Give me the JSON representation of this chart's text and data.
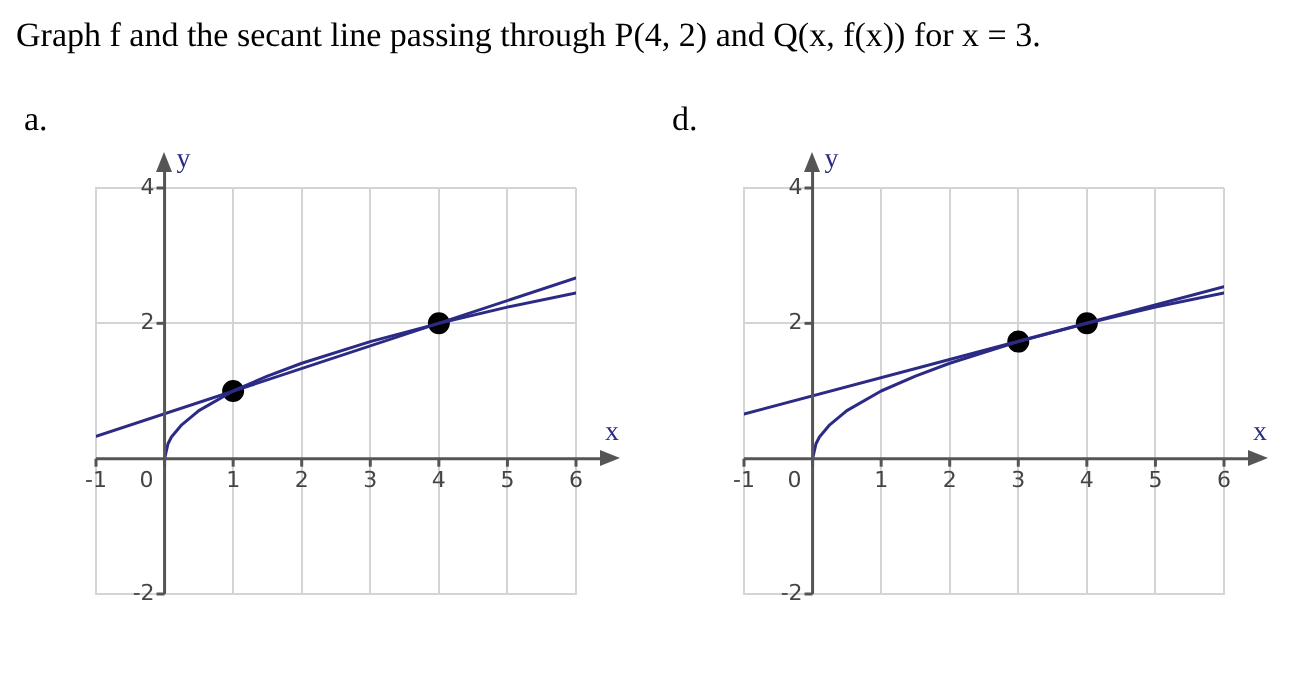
{
  "chart_data": [
    {
      "type": "line",
      "title": "a.",
      "annotations": [
        "Graph f and the secant line passing through P(4, 2) and Q(x, f(x)) for x = 3."
      ],
      "xlabel": "x",
      "ylabel": "y",
      "xlim": [
        -1,
        6
      ],
      "ylim": [
        -2,
        4
      ],
      "xticks": [
        -1,
        0,
        1,
        2,
        3,
        4,
        5,
        6
      ],
      "yticks": [
        -2,
        2,
        4
      ],
      "grid": true,
      "legend": false,
      "series": [
        {
          "type": "line",
          "color": "#2b2b85",
          "x": [
            0,
            0.05,
            0.1,
            0.25,
            0.5,
            1,
            1.5,
            2,
            3,
            4,
            5,
            6
          ],
          "values": [
            0,
            0.22,
            0.32,
            0.5,
            0.71,
            1,
            1.22,
            1.41,
            1.73,
            2,
            2.24,
            2.45
          ]
        },
        {
          "type": "line",
          "color": "#2b2b85",
          "x": [
            -1,
            6
          ],
          "values": [
            0.33,
            2.67
          ]
        },
        {
          "type": "scatter",
          "color": "#000000",
          "marker": "circle",
          "x": [
            1,
            4
          ],
          "values": [
            1,
            2
          ]
        }
      ]
    },
    {
      "type": "line",
      "title": "d.",
      "xlabel": "x",
      "ylabel": "y",
      "xlim": [
        -1,
        6
      ],
      "ylim": [
        -2,
        4
      ],
      "xticks": [
        -1,
        0,
        1,
        2,
        3,
        4,
        5,
        6
      ],
      "yticks": [
        -2,
        2,
        4
      ],
      "grid": true,
      "legend": false,
      "series": [
        {
          "type": "line",
          "color": "#2b2b85",
          "x": [
            0,
            0.05,
            0.1,
            0.25,
            0.5,
            1,
            1.5,
            2,
            3,
            4,
            5,
            6
          ],
          "values": [
            0,
            0.22,
            0.32,
            0.5,
            0.71,
            1,
            1.22,
            1.41,
            1.73,
            2,
            2.24,
            2.45
          ]
        },
        {
          "type": "line",
          "color": "#2b2b85",
          "x": [
            -1,
            6
          ],
          "values": [
            0.66,
            2.54
          ]
        },
        {
          "type": "scatter",
          "color": "#000000",
          "marker": "circle",
          "x": [
            3,
            4
          ],
          "values": [
            1.73,
            2
          ]
        }
      ]
    }
  ]
}
